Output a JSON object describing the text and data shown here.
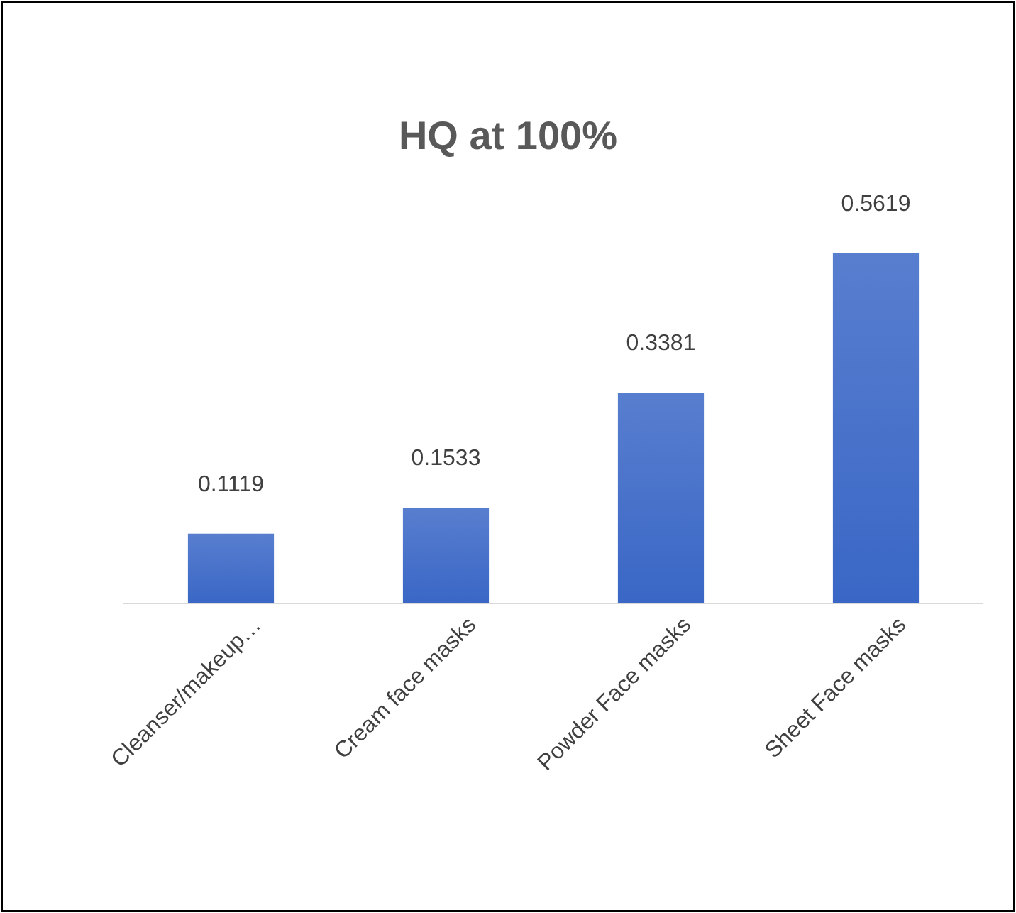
{
  "chart_data": {
    "type": "bar",
    "title": "HQ at 100%",
    "categories": [
      "Cleanser/makeup…",
      "Cream face masks",
      "Powder Face masks",
      "Sheet Face masks"
    ],
    "values": [
      0.1119,
      0.1533,
      0.3381,
      0.5619
    ],
    "color": "#3a67c6",
    "data_labels": true
  }
}
